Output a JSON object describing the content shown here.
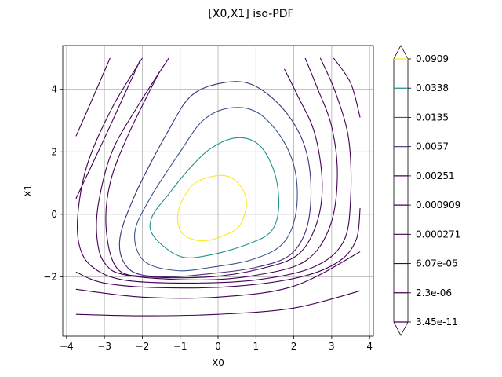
{
  "chart_data": {
    "type": "contour",
    "title": "[X0,X1] iso-PDF",
    "xlabel": "X0",
    "ylabel": "X1",
    "xlim": [
      -4.1,
      4.1
    ],
    "ylim": [
      -3.9,
      5.4
    ],
    "xticks": [
      -4,
      -3,
      -2,
      -1,
      0,
      1,
      2,
      3,
      4
    ],
    "yticks": [
      -2,
      0,
      2,
      4
    ],
    "xtick_labels": [
      "−4",
      "−3",
      "−2",
      "−1",
      "0",
      "1",
      "2",
      "3",
      "4"
    ],
    "ytick_labels": [
      "−2",
      "0",
      "2",
      "4"
    ],
    "grid": true,
    "colorbar": {
      "levels": [
        "0.0909",
        "0.0338",
        "0.0135",
        "0.0057",
        "0.00251",
        "0.000909",
        "0.000271",
        "6.07e-05",
        "2.3e-06",
        "3.45e-11"
      ],
      "extend": "both",
      "colors": [
        "#fde725",
        "#21918c",
        "#3b528b",
        "#472d7b",
        "#440154",
        "#440154",
        "#440154",
        "#440154",
        "#440154",
        "#440154"
      ]
    },
    "contours": [
      {
        "level": "0.0909",
        "color": "#fde725",
        "closed": true,
        "points": [
          [
            -0.7,
            0.9
          ],
          [
            -0.2,
            1.2
          ],
          [
            0.3,
            1.2
          ],
          [
            0.65,
            0.8
          ],
          [
            0.75,
            0.3
          ],
          [
            0.6,
            -0.3
          ],
          [
            0.3,
            -0.6
          ],
          [
            -0.4,
            -0.85
          ],
          [
            -0.95,
            -0.6
          ],
          [
            -1.05,
            0.1
          ],
          [
            -0.7,
            0.9
          ]
        ]
      },
      {
        "level": "0.0338",
        "color": "#21918c",
        "closed": true,
        "points": [
          [
            -0.8,
            1.4
          ],
          [
            -0.2,
            2.1
          ],
          [
            0.5,
            2.45
          ],
          [
            1.1,
            2.2
          ],
          [
            1.5,
            1.3
          ],
          [
            1.6,
            0.2
          ],
          [
            1.4,
            -0.55
          ],
          [
            0.8,
            -0.95
          ],
          [
            -0.2,
            -1.3
          ],
          [
            -1.0,
            -1.35
          ],
          [
            -1.7,
            -0.7
          ],
          [
            -1.75,
            -0.1
          ],
          [
            -1.3,
            0.65
          ],
          [
            -0.8,
            1.4
          ]
        ]
      },
      {
        "level": "0.0135",
        "color": "#3b528b",
        "closed": true,
        "points": [
          [
            -1.0,
            2.0
          ],
          [
            -0.4,
            3.0
          ],
          [
            0.3,
            3.4
          ],
          [
            1.05,
            3.25
          ],
          [
            1.7,
            2.4
          ],
          [
            2.05,
            1.3
          ],
          [
            2.05,
            0.0
          ],
          [
            1.7,
            -0.95
          ],
          [
            0.9,
            -1.45
          ],
          [
            -0.2,
            -1.7
          ],
          [
            -1.1,
            -1.8
          ],
          [
            -1.95,
            -1.5
          ],
          [
            -2.2,
            -0.6
          ],
          [
            -1.8,
            0.5
          ],
          [
            -1.0,
            2.0
          ]
        ]
      },
      {
        "level": "0.0057",
        "color": "#472d7b",
        "closed": true,
        "points": [
          [
            -1.3,
            2.7
          ],
          [
            -0.7,
            3.8
          ],
          [
            0.1,
            4.2
          ],
          [
            0.9,
            4.15
          ],
          [
            1.7,
            3.4
          ],
          [
            2.25,
            2.3
          ],
          [
            2.45,
            1.0
          ],
          [
            2.35,
            -0.4
          ],
          [
            1.9,
            -1.3
          ],
          [
            1.0,
            -1.7
          ],
          [
            -0.2,
            -1.9
          ],
          [
            -1.4,
            -2.0
          ],
          [
            -2.3,
            -1.8
          ],
          [
            -2.6,
            -0.9
          ],
          [
            -2.2,
            0.6
          ],
          [
            -1.3,
            2.7
          ]
        ]
      },
      {
        "level": "0.00251",
        "color": "#440154",
        "closed": false,
        "points": [
          [
            -1.55,
            4.55
          ],
          [
            -2.35,
            2.6
          ],
          [
            -2.85,
            1.0
          ],
          [
            -2.95,
            -0.5
          ],
          [
            -2.65,
            -1.75
          ],
          [
            -1.8,
            -2.0
          ],
          [
            -0.2,
            -2.0
          ],
          [
            1.1,
            -1.75
          ],
          [
            2.1,
            -1.3
          ],
          [
            2.6,
            -0.3
          ],
          [
            2.75,
            1.0
          ],
          [
            2.55,
            2.6
          ],
          [
            2.1,
            3.8
          ],
          [
            1.75,
            4.65
          ]
        ]
      },
      {
        "level": "0.000909",
        "color": "#440154",
        "closed": false,
        "points": [
          [
            -1.3,
            5.0
          ],
          [
            -2.1,
            3.5
          ],
          [
            -2.8,
            2.0
          ],
          [
            -3.15,
            0.4
          ],
          [
            -3.2,
            -0.7
          ],
          [
            -3.0,
            -1.55
          ],
          [
            -2.4,
            -1.95
          ],
          [
            -0.5,
            -2.1
          ],
          [
            1.0,
            -1.95
          ],
          [
            2.3,
            -1.5
          ],
          [
            2.95,
            -0.4
          ],
          [
            3.15,
            1.2
          ],
          [
            3.0,
            2.8
          ],
          [
            2.6,
            4.1
          ],
          [
            2.3,
            5.0
          ]
        ]
      },
      {
        "level": "0.000271",
        "color": "#440154",
        "closed": false,
        "points": [
          [
            -2.0,
            5.0
          ],
          [
            -2.8,
            3.4
          ],
          [
            -3.45,
            1.6
          ],
          [
            -3.7,
            0.0
          ],
          [
            -3.65,
            -1.05
          ],
          [
            -3.3,
            -1.7
          ],
          [
            -2.5,
            -2.1
          ],
          [
            -0.8,
            -2.2
          ],
          [
            1.0,
            -2.1
          ],
          [
            2.5,
            -1.7
          ],
          [
            3.3,
            -0.9
          ],
          [
            3.5,
            0.5
          ],
          [
            3.45,
            2.4
          ],
          [
            3.1,
            3.9
          ],
          [
            2.7,
            5.0
          ]
        ]
      },
      {
        "level": "6.07e-05",
        "color": "#440154",
        "closed": false,
        "points": [
          [
            -2.85,
            5.0
          ],
          [
            -3.35,
            3.6
          ],
          [
            -3.75,
            2.5
          ]
        ],
        "points2": [
          [
            -3.75,
            -1.85
          ],
          [
            -3.0,
            -2.2
          ],
          [
            -1.5,
            -2.35
          ],
          [
            0.5,
            -2.3
          ],
          [
            2.2,
            -2.0
          ],
          [
            3.2,
            -1.5
          ],
          [
            3.65,
            -0.8
          ],
          [
            3.75,
            0.2
          ]
        ],
        "points3": [
          [
            3.05,
            5.0
          ],
          [
            3.5,
            4.2
          ],
          [
            3.75,
            3.1
          ]
        ]
      },
      {
        "level": "2.3e-06",
        "color": "#440154",
        "closed": false,
        "points": [
          [
            -3.75,
            -2.4
          ],
          [
            -2.0,
            -2.65
          ],
          [
            0.0,
            -2.65
          ],
          [
            2.0,
            -2.3
          ],
          [
            3.75,
            -1.2
          ]
        ],
        "points2": [
          [
            -3.75,
            0.5
          ],
          [
            -3.05,
            2.3
          ],
          [
            -2.35,
            4.15
          ],
          [
            -2.05,
            4.95
          ]
        ]
      },
      {
        "level": "3.45e-11",
        "color": "#440154",
        "closed": false,
        "points": [
          [
            -3.75,
            -3.2
          ],
          [
            -2.0,
            -3.25
          ],
          [
            0.0,
            -3.2
          ],
          [
            2.0,
            -3.0
          ],
          [
            3.75,
            -2.45
          ]
        ]
      }
    ]
  }
}
